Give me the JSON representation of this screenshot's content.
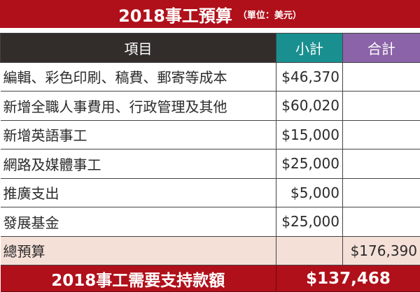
{
  "title": {
    "main": "2018事工預算",
    "unit": "（單位：美元）"
  },
  "headers": {
    "item": "項目",
    "subtotal": "小計",
    "total": "合計"
  },
  "rows": [
    {
      "item": "編輯、彩色印刷、稿費、郵寄等成本",
      "subtotal": "$46,370"
    },
    {
      "item": "新增全職人事費用、行政管理及其他",
      "subtotal": "$60,020"
    },
    {
      "item": "新增英語事工",
      "subtotal": "$15,000"
    },
    {
      "item": "網路及媒體事工",
      "subtotal": "$25,000"
    },
    {
      "item": "推廣支出",
      "subtotal": "$5,000"
    },
    {
      "item": "發展基金",
      "subtotal": "$25,000"
    }
  ],
  "total_row": {
    "label": "總預算",
    "total": "$176,390"
  },
  "final_row": {
    "label": "2018事工需要支持款額",
    "amount": "$137,468"
  },
  "colors": {
    "brand_red": "#b0101a",
    "header_dark": "#322d2b",
    "teal": "#1a8f8f",
    "purple": "#8b63a8",
    "total_bg": "#f5e0d8"
  }
}
